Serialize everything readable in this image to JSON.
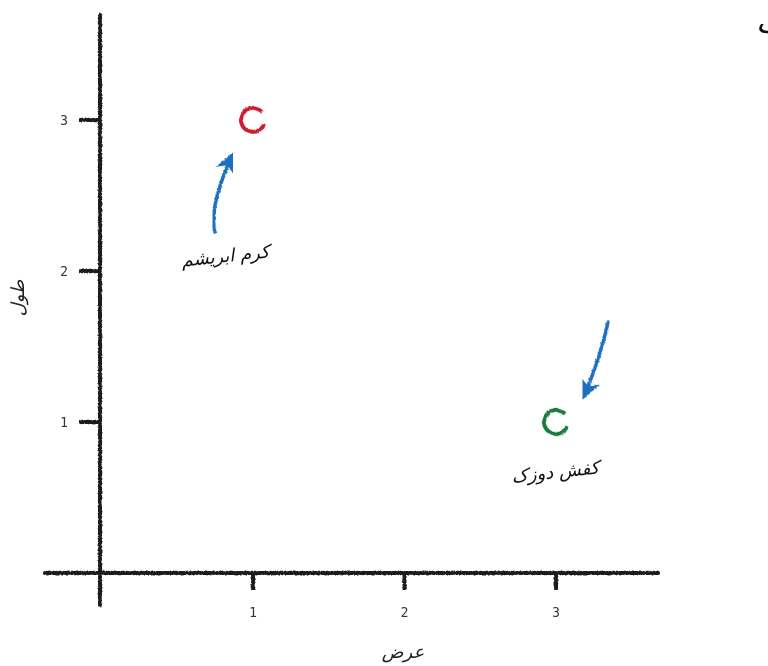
{
  "chart_data": {
    "type": "scatter",
    "title": "داده های آموزشی برای دسته بندی حشرات",
    "xlabel": "عرض",
    "ylabel": "طول",
    "xlim": [
      -1,
      3.7
    ],
    "ylim": [
      0,
      3.5
    ],
    "xticks": [
      "1",
      "2",
      "3"
    ],
    "yticks": [
      "1",
      "2",
      "3"
    ],
    "grid": false,
    "points": [
      {
        "x": 1,
        "y": 3,
        "color": "#cc1f2e"
      },
      {
        "x": 3,
        "y": 1,
        "color": "#1f7a3e"
      }
    ],
    "annotations": [
      {
        "text": "کرم ابریشم",
        "x": 1,
        "y": 3,
        "arrow_color": "#1f6fbf"
      },
      {
        "text": "کفش دوزک",
        "x": 3,
        "y": 1,
        "arrow_color": "#1f6fbf"
      }
    ]
  }
}
